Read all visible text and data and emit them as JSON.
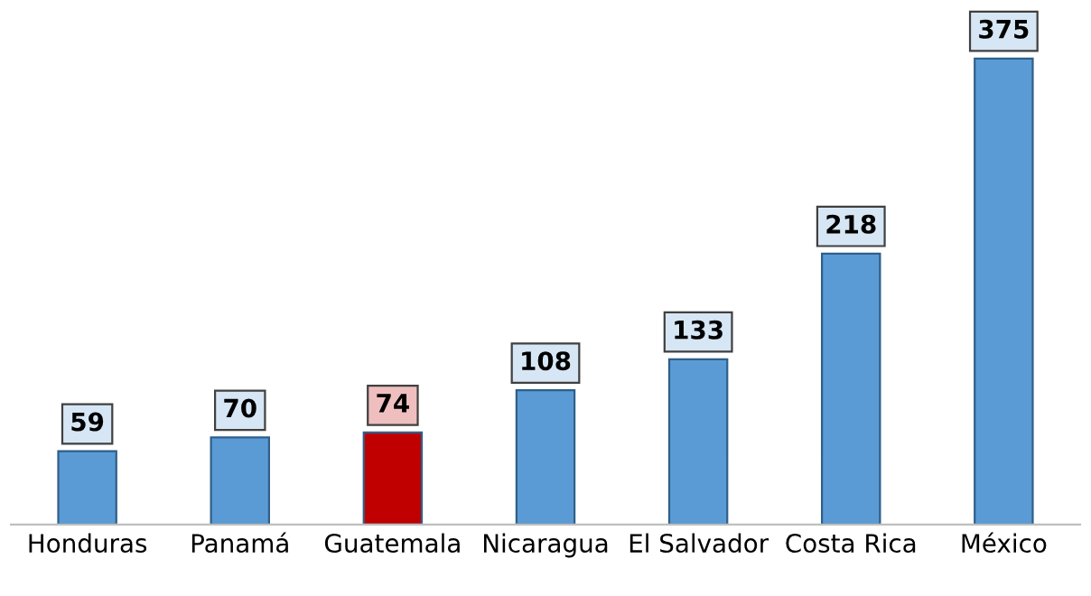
{
  "chart_data": {
    "type": "bar",
    "categories": [
      "Honduras",
      "Panamá",
      "Guatemala",
      "Nicaragua",
      "El Salvador",
      "Costa Rica",
      "México"
    ],
    "values": [
      59,
      70,
      74,
      108,
      133,
      218,
      375
    ],
    "colors": [
      "#5b9bd5",
      "#5b9bd5",
      "#c00000",
      "#5b9bd5",
      "#5b9bd5",
      "#5b9bd5",
      "#5b9bd5"
    ],
    "data_labels": true,
    "grid": false,
    "legend": false,
    "tick_labels": "x"
  }
}
